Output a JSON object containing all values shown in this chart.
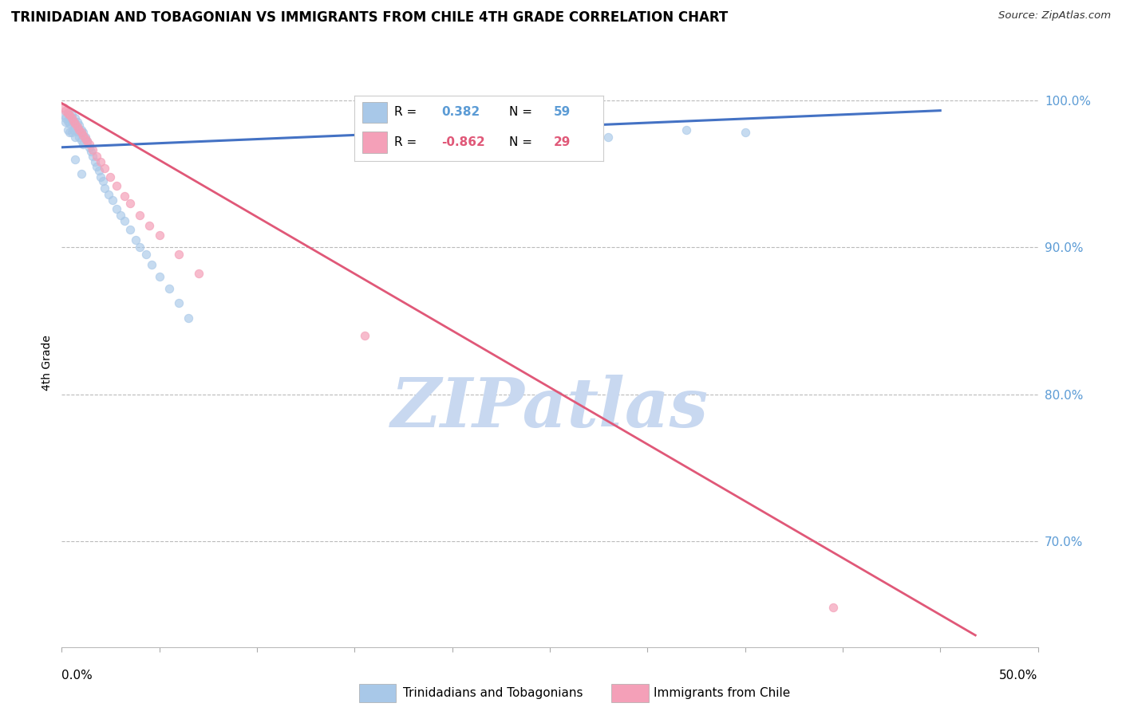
{
  "title": "TRINIDADIAN AND TOBAGONIAN VS IMMIGRANTS FROM CHILE 4TH GRADE CORRELATION CHART",
  "source": "Source: ZipAtlas.com",
  "ylabel": "4th Grade",
  "xlim": [
    0.0,
    0.5
  ],
  "ylim": [
    0.628,
    1.015
  ],
  "yticks": [
    0.7,
    0.8,
    0.9,
    1.0
  ],
  "ytick_labels": [
    "70.0%",
    "80.0%",
    "90.0%",
    "100.0%"
  ],
  "legend1_label": "Trinidadians and Tobagonians",
  "legend2_label": "Immigrants from Chile",
  "R_blue": 0.382,
  "N_blue": 59,
  "R_pink": -0.862,
  "N_pink": 29,
  "blue_color": "#a8c8e8",
  "pink_color": "#f4a0b8",
  "blue_line_color": "#4472c4",
  "pink_line_color": "#e05878",
  "watermark": "ZIPatlas",
  "watermark_color": "#c8d8f0",
  "blue_scatter_x": [
    0.001,
    0.002,
    0.002,
    0.003,
    0.003,
    0.003,
    0.004,
    0.004,
    0.004,
    0.005,
    0.005,
    0.005,
    0.006,
    0.006,
    0.007,
    0.007,
    0.007,
    0.008,
    0.008,
    0.009,
    0.009,
    0.01,
    0.01,
    0.011,
    0.011,
    0.012,
    0.013,
    0.014,
    0.015,
    0.016,
    0.017,
    0.018,
    0.019,
    0.02,
    0.021,
    0.022,
    0.024,
    0.026,
    0.028,
    0.03,
    0.032,
    0.035,
    0.038,
    0.04,
    0.043,
    0.046,
    0.05,
    0.055,
    0.06,
    0.065,
    0.007,
    0.01,
    0.195,
    0.205,
    0.25,
    0.26,
    0.28,
    0.32,
    0.35
  ],
  "blue_scatter_y": [
    0.99,
    0.988,
    0.985,
    0.992,
    0.986,
    0.98,
    0.988,
    0.984,
    0.978,
    0.99,
    0.985,
    0.978,
    0.986,
    0.98,
    0.988,
    0.983,
    0.975,
    0.985,
    0.979,
    0.983,
    0.975,
    0.98,
    0.973,
    0.978,
    0.97,
    0.975,
    0.972,
    0.968,
    0.965,
    0.962,
    0.958,
    0.955,
    0.952,
    0.948,
    0.945,
    0.94,
    0.936,
    0.932,
    0.926,
    0.922,
    0.918,
    0.912,
    0.905,
    0.9,
    0.895,
    0.888,
    0.88,
    0.872,
    0.862,
    0.852,
    0.96,
    0.95,
    0.99,
    0.985,
    0.985,
    0.978,
    0.975,
    0.98,
    0.978
  ],
  "pink_scatter_x": [
    0.001,
    0.002,
    0.003,
    0.004,
    0.005,
    0.006,
    0.007,
    0.008,
    0.009,
    0.01,
    0.011,
    0.012,
    0.013,
    0.014,
    0.016,
    0.018,
    0.02,
    0.022,
    0.025,
    0.028,
    0.032,
    0.035,
    0.04,
    0.045,
    0.05,
    0.06,
    0.07,
    0.155,
    0.395
  ],
  "pink_scatter_y": [
    0.995,
    0.993,
    0.991,
    0.99,
    0.988,
    0.986,
    0.984,
    0.982,
    0.98,
    0.978,
    0.976,
    0.974,
    0.972,
    0.97,
    0.966,
    0.962,
    0.958,
    0.954,
    0.948,
    0.942,
    0.935,
    0.93,
    0.922,
    0.915,
    0.908,
    0.895,
    0.882,
    0.84,
    0.655
  ],
  "blue_trendline_x": [
    0.0,
    0.45
  ],
  "blue_trendline_y": [
    0.968,
    0.993
  ],
  "pink_trendline_x": [
    0.0,
    0.468
  ],
  "pink_trendline_y": [
    0.998,
    0.636
  ]
}
